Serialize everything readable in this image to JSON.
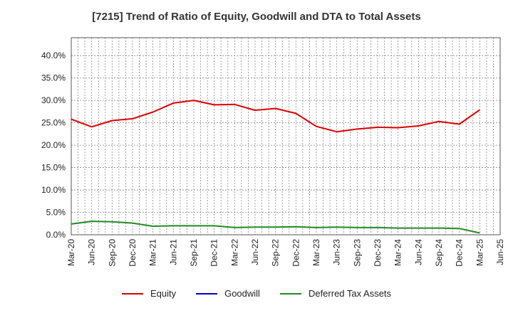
{
  "chart_data": {
    "type": "line",
    "title": "[7215]  Trend of Ratio of Equity, Goodwill and DTA to Total Assets",
    "xlabel": "",
    "ylabel": "",
    "ylim": [
      0,
      0.44
    ],
    "y_ticks": [
      0,
      0.05,
      0.1,
      0.15,
      0.2,
      0.25,
      0.3,
      0.35,
      0.4
    ],
    "y_tick_labels": [
      "0.0%",
      "5.0%",
      "10.0%",
      "15.0%",
      "20.0%",
      "25.0%",
      "30.0%",
      "35.0%",
      "40.0%"
    ],
    "grid": true,
    "legend_position": "bottom",
    "x_tick_labels": [
      "Mar-20",
      "Jun-20",
      "Sep-20",
      "Dec-20",
      "Mar-21",
      "Jun-21",
      "Sep-21",
      "Dec-21",
      "Mar-22",
      "Jun-22",
      "Sep-22",
      "Dec-22",
      "Mar-23",
      "Jun-23",
      "Sep-23",
      "Dec-23",
      "Mar-24",
      "Jun-24",
      "Sep-24",
      "Dec-24",
      "Mar-25",
      "Jun-25"
    ],
    "x_tick_step": 3,
    "x_months_total": 63,
    "series": [
      {
        "name": "Equity",
        "color": "#dd0000",
        "values": [
          0.258,
          0.241,
          0.255,
          0.259,
          0.274,
          0.294,
          0.3,
          0.29,
          0.291,
          0.278,
          0.282,
          0.271,
          0.242,
          0.23,
          0.236,
          0.24,
          0.239,
          0.243,
          0.253,
          0.247,
          0.279
        ]
      },
      {
        "name": "Goodwill",
        "color": "#0000cc",
        "values": []
      },
      {
        "name": "Deferred Tax Assets",
        "color": "#228b22",
        "values": [
          0.024,
          0.03,
          0.029,
          0.026,
          0.019,
          0.02,
          0.02,
          0.02,
          0.016,
          0.017,
          0.017,
          0.018,
          0.016,
          0.017,
          0.016,
          0.016,
          0.015,
          0.015,
          0.015,
          0.014,
          0.004
        ]
      }
    ]
  }
}
